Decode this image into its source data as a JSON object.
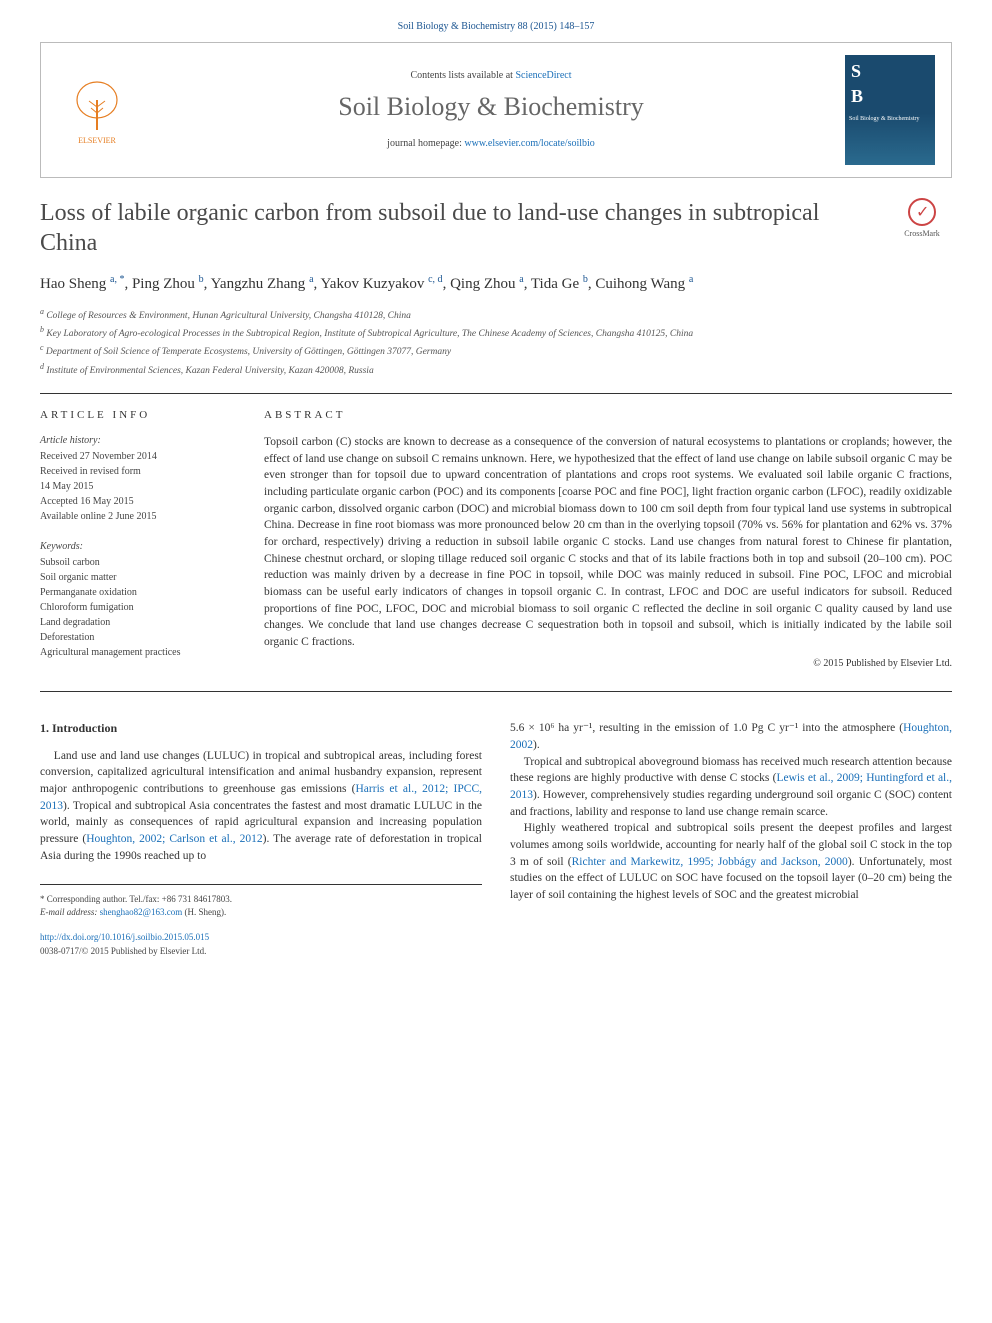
{
  "citation": "Soil Biology & Biochemistry 88 (2015) 148–157",
  "banner": {
    "contents_prefix": "Contents lists available at ",
    "contents_link": "ScienceDirect",
    "journal_name": "Soil Biology & Biochemistry",
    "homepage_prefix": "journal homepage: ",
    "homepage_link": "www.elsevier.com/locate/soilbio",
    "publisher": "ELSEVIER",
    "cover_abbrev": "SB"
  },
  "title": "Loss of labile organic carbon from subsoil due to land-use changes in subtropical China",
  "crossmark_label": "CrossMark",
  "authors_html": "Hao Sheng <sup>a, *</sup>, Ping Zhou <sup>b</sup>, Yangzhu Zhang <sup>a</sup>, Yakov Kuzyakov <sup>c, d</sup>, Qing Zhou <sup>a</sup>, Tida Ge <sup>b</sup>, Cuihong Wang <sup>a</sup>",
  "affiliations": [
    "a College of Resources & Environment, Hunan Agricultural University, Changsha 410128, China",
    "b Key Laboratory of Agro-ecological Processes in the Subtropical Region, Institute of Subtropical Agriculture, The Chinese Academy of Sciences, Changsha 410125, China",
    "c Department of Soil Science of Temperate Ecosystems, University of Göttingen, Göttingen 37077, Germany",
    "d Institute of Environmental Sciences, Kazan Federal University, Kazan 420008, Russia"
  ],
  "info": {
    "heading": "ARTICLE INFO",
    "history_label": "Article history:",
    "history": [
      "Received 27 November 2014",
      "Received in revised form",
      "14 May 2015",
      "Accepted 16 May 2015",
      "Available online 2 June 2015"
    ],
    "keywords_label": "Keywords:",
    "keywords": [
      "Subsoil carbon",
      "Soil organic matter",
      "Permanganate oxidation",
      "Chloroform fumigation",
      "Land degradation",
      "Deforestation",
      "Agricultural management practices"
    ]
  },
  "abstract": {
    "heading": "ABSTRACT",
    "text": "Topsoil carbon (C) stocks are known to decrease as a consequence of the conversion of natural ecosystems to plantations or croplands; however, the effect of land use change on subsoil C remains unknown. Here, we hypothesized that the effect of land use change on labile subsoil organic C may be even stronger than for topsoil due to upward concentration of plantations and crops root systems. We evaluated soil labile organic C fractions, including particulate organic carbon (POC) and its components [coarse POC and fine POC], light fraction organic carbon (LFOC), readily oxidizable organic carbon, dissolved organic carbon (DOC) and microbial biomass down to 100 cm soil depth from four typical land use systems in subtropical China. Decrease in fine root biomass was more pronounced below 20 cm than in the overlying topsoil (70% vs. 56% for plantation and 62% vs. 37% for orchard, respectively) driving a reduction in subsoil labile organic C stocks. Land use changes from natural forest to Chinese fir plantation, Chinese chestnut orchard, or sloping tillage reduced soil organic C stocks and that of its labile fractions both in top and subsoil (20–100 cm). POC reduction was mainly driven by a decrease in fine POC in topsoil, while DOC was mainly reduced in subsoil. Fine POC, LFOC and microbial biomass can be useful early indicators of changes in topsoil organic C. In contrast, LFOC and DOC are useful indicators for subsoil. Reduced proportions of fine POC, LFOC, DOC and microbial biomass to soil organic C reflected the decline in soil organic C quality caused by land use changes. We conclude that land use changes decrease C sequestration both in topsoil and subsoil, which is initially indicated by the labile soil organic C fractions.",
    "copyright": "© 2015 Published by Elsevier Ltd."
  },
  "section1_heading": "1. Introduction",
  "body_left_p1_a": "Land use and land use changes (LULUC) in tropical and subtropical areas, including forest conversion, capitalized agricultural intensification and animal husbandry expansion, represent major anthropogenic contributions to greenhouse gas emissions (",
  "body_left_ref1": "Harris et al., 2012; IPCC, 2013",
  "body_left_p1_b": "). Tropical and subtropical Asia concentrates the fastest and most dramatic LULUC in the world, mainly as consequences of rapid agricultural expansion and increasing population pressure (",
  "body_left_ref2": "Houghton, 2002; Carlson et al., 2012",
  "body_left_p1_c": "). The average rate of deforestation in tropical Asia during the 1990s reached up to",
  "body_right_p1_a": "5.6 × 10⁶ ha yr⁻¹, resulting in the emission of 1.0 Pg C yr⁻¹ into the atmosphere (",
  "body_right_ref1": "Houghton, 2002",
  "body_right_p1_b": ").",
  "body_right_p2_a": "Tropical and subtropical aboveground biomass has received much research attention because these regions are highly productive with dense C stocks (",
  "body_right_ref2": "Lewis et al., 2009; Huntingford et al., 2013",
  "body_right_p2_b": "). However, comprehensively studies regarding underground soil organic C (SOC) content and fractions, lability and response to land use change remain scarce.",
  "body_right_p3_a": "Highly weathered tropical and subtropical soils present the deepest profiles and largest volumes among soils worldwide, accounting for nearly half of the global soil C stock in the top 3 m of soil (",
  "body_right_ref3": "Richter and Markewitz, 1995; Jobbágy and Jackson, 2000",
  "body_right_p3_b": "). Unfortunately, most studies on the effect of LULUC on SOC have focused on the topsoil layer (0–20 cm) being the layer of soil containing the highest levels of SOC and the greatest microbial",
  "corresponding": {
    "label": "* Corresponding author. Tel./fax: +86 731 84617803.",
    "email_label": "E-mail address: ",
    "email": "shenghao82@163.com",
    "email_suffix": " (H. Sheng)."
  },
  "doi": {
    "link": "http://dx.doi.org/10.1016/j.soilbio.2015.05.015",
    "issn": "0038-0717/© 2015 Published by Elsevier Ltd."
  }
}
